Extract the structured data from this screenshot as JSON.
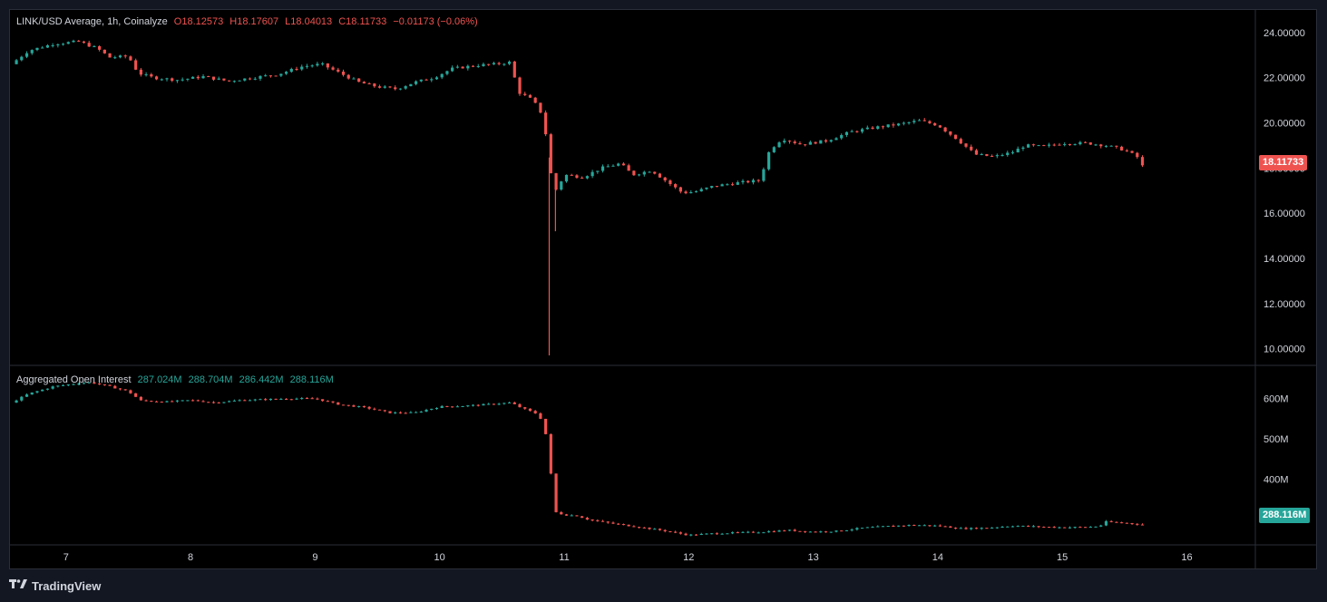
{
  "main_legend": {
    "symbol": "LINK/USD Average, 1h, Coinalyze",
    "open": "O18.12573",
    "high": "H18.17607",
    "low": "L18.04013",
    "close": "C18.11733",
    "change": "−0.01173 (−0.06%)"
  },
  "oi_legend": {
    "name": "Aggregated Open Interest",
    "v1": "287.024M",
    "v2": "288.704M",
    "v3": "286.442M",
    "v4": "288.116M"
  },
  "price_tag": "18.11733",
  "oi_tag": "288.116M",
  "footer": {
    "brand": "TradingView"
  },
  "colors": {
    "up": "#26a69a",
    "down": "#ef5350",
    "background": "#000000",
    "grid_line": "#2a2e39",
    "axis_text": "#d1d4dc"
  },
  "chart_data": [
    {
      "type": "candlestick",
      "title": "LINK/USD Average, 1h, Coinalyze",
      "y_ticks": [
        "24.00000",
        "22.00000",
        "20.00000",
        "18.00000",
        "16.00000",
        "14.00000",
        "12.00000",
        "10.00000"
      ],
      "ylim": [
        9.3,
        25.0
      ],
      "x_ticks": [
        "7",
        "8",
        "9",
        "10",
        "11",
        "12",
        "13",
        "14",
        "15",
        "16"
      ],
      "x_range_days": [
        6.55,
        16.55
      ],
      "last_value": 18.11733,
      "path": [
        [
          6.56,
          22.6
        ],
        [
          6.7,
          23.2
        ],
        [
          6.9,
          23.5
        ],
        [
          7.1,
          23.6
        ],
        [
          7.25,
          23.3
        ],
        [
          7.35,
          22.9
        ],
        [
          7.5,
          22.95
        ],
        [
          7.58,
          22.2
        ],
        [
          7.7,
          22.0
        ],
        [
          7.9,
          21.9
        ],
        [
          8.1,
          22.05
        ],
        [
          8.3,
          21.85
        ],
        [
          8.5,
          22.0
        ],
        [
          8.7,
          22.15
        ],
        [
          8.9,
          22.5
        ],
        [
          9.05,
          22.6
        ],
        [
          9.2,
          22.2
        ],
        [
          9.35,
          21.8
        ],
        [
          9.5,
          21.6
        ],
        [
          9.65,
          21.5
        ],
        [
          9.8,
          21.8
        ],
        [
          9.95,
          22.0
        ],
        [
          10.1,
          22.4
        ],
        [
          10.3,
          22.55
        ],
        [
          10.45,
          22.6
        ],
        [
          10.58,
          22.7
        ],
        [
          10.62,
          21.4
        ],
        [
          10.75,
          21.0
        ],
        [
          10.82,
          20.4
        ],
        [
          10.87,
          19.0
        ],
        [
          10.9,
          17.4
        ],
        [
          10.94,
          17.0
        ],
        [
          11.0,
          17.7
        ],
        [
          11.15,
          17.6
        ],
        [
          11.3,
          18.0
        ],
        [
          11.45,
          18.2
        ],
        [
          11.55,
          17.7
        ],
        [
          11.7,
          17.9
        ],
        [
          11.85,
          17.3
        ],
        [
          11.95,
          16.9
        ],
        [
          12.05,
          16.95
        ],
        [
          12.2,
          17.2
        ],
        [
          12.4,
          17.35
        ],
        [
          12.57,
          17.45
        ],
        [
          12.65,
          18.8
        ],
        [
          12.75,
          19.3
        ],
        [
          12.9,
          19.05
        ],
        [
          13.1,
          19.2
        ],
        [
          13.3,
          19.6
        ],
        [
          13.5,
          19.8
        ],
        [
          13.7,
          19.95
        ],
        [
          13.85,
          20.1
        ],
        [
          14.0,
          19.9
        ],
        [
          14.15,
          19.3
        ],
        [
          14.3,
          18.6
        ],
        [
          14.45,
          18.5
        ],
        [
          14.6,
          18.7
        ],
        [
          14.7,
          19.0
        ],
        [
          14.85,
          18.95
        ],
        [
          15.0,
          19.1
        ],
        [
          15.2,
          19.1
        ],
        [
          15.35,
          19.0
        ],
        [
          15.5,
          18.8
        ],
        [
          15.6,
          18.5
        ],
        [
          15.65,
          18.1
        ]
      ],
      "spikes": [
        {
          "day": 10.88,
          "low": 9.7
        },
        {
          "day": 10.93,
          "low": 15.2
        }
      ]
    },
    {
      "type": "candlestick",
      "title": "Aggregated Open Interest",
      "y_ticks": [
        "600M",
        "500M",
        "400M"
      ],
      "ylim": [
        240,
        680
      ],
      "last_value": 288.116,
      "path": [
        [
          6.56,
          590
        ],
        [
          6.7,
          612
        ],
        [
          6.9,
          630
        ],
        [
          7.1,
          638
        ],
        [
          7.2,
          640
        ],
        [
          7.35,
          630
        ],
        [
          7.5,
          618
        ],
        [
          7.6,
          595
        ],
        [
          7.8,
          592
        ],
        [
          8.0,
          596
        ],
        [
          8.2,
          590
        ],
        [
          8.4,
          596
        ],
        [
          8.6,
          598
        ],
        [
          8.8,
          600
        ],
        [
          9.0,
          600
        ],
        [
          9.2,
          585
        ],
        [
          9.4,
          578
        ],
        [
          9.6,
          565
        ],
        [
          9.8,
          565
        ],
        [
          10.0,
          580
        ],
        [
          10.2,
          582
        ],
        [
          10.4,
          586
        ],
        [
          10.57,
          590
        ],
        [
          10.65,
          578
        ],
        [
          10.8,
          560
        ],
        [
          10.85,
          515
        ],
        [
          10.88,
          460
        ],
        [
          10.92,
          320
        ],
        [
          11.0,
          312
        ],
        [
          11.1,
          310
        ],
        [
          11.2,
          300
        ],
        [
          11.4,
          290
        ],
        [
          11.6,
          282
        ],
        [
          11.8,
          273
        ],
        [
          12.0,
          262
        ],
        [
          12.2,
          266
        ],
        [
          12.4,
          268
        ],
        [
          12.6,
          270
        ],
        [
          12.8,
          274
        ],
        [
          13.0,
          270
        ],
        [
          13.2,
          272
        ],
        [
          13.4,
          280
        ],
        [
          13.6,
          284
        ],
        [
          13.8,
          287
        ],
        [
          14.0,
          285
        ],
        [
          14.2,
          278
        ],
        [
          14.4,
          280
        ],
        [
          14.6,
          285
        ],
        [
          14.8,
          283
        ],
        [
          15.0,
          281
        ],
        [
          15.2,
          282
        ],
        [
          15.3,
          284
        ],
        [
          15.35,
          295
        ],
        [
          15.5,
          292
        ],
        [
          15.65,
          288
        ]
      ]
    }
  ]
}
